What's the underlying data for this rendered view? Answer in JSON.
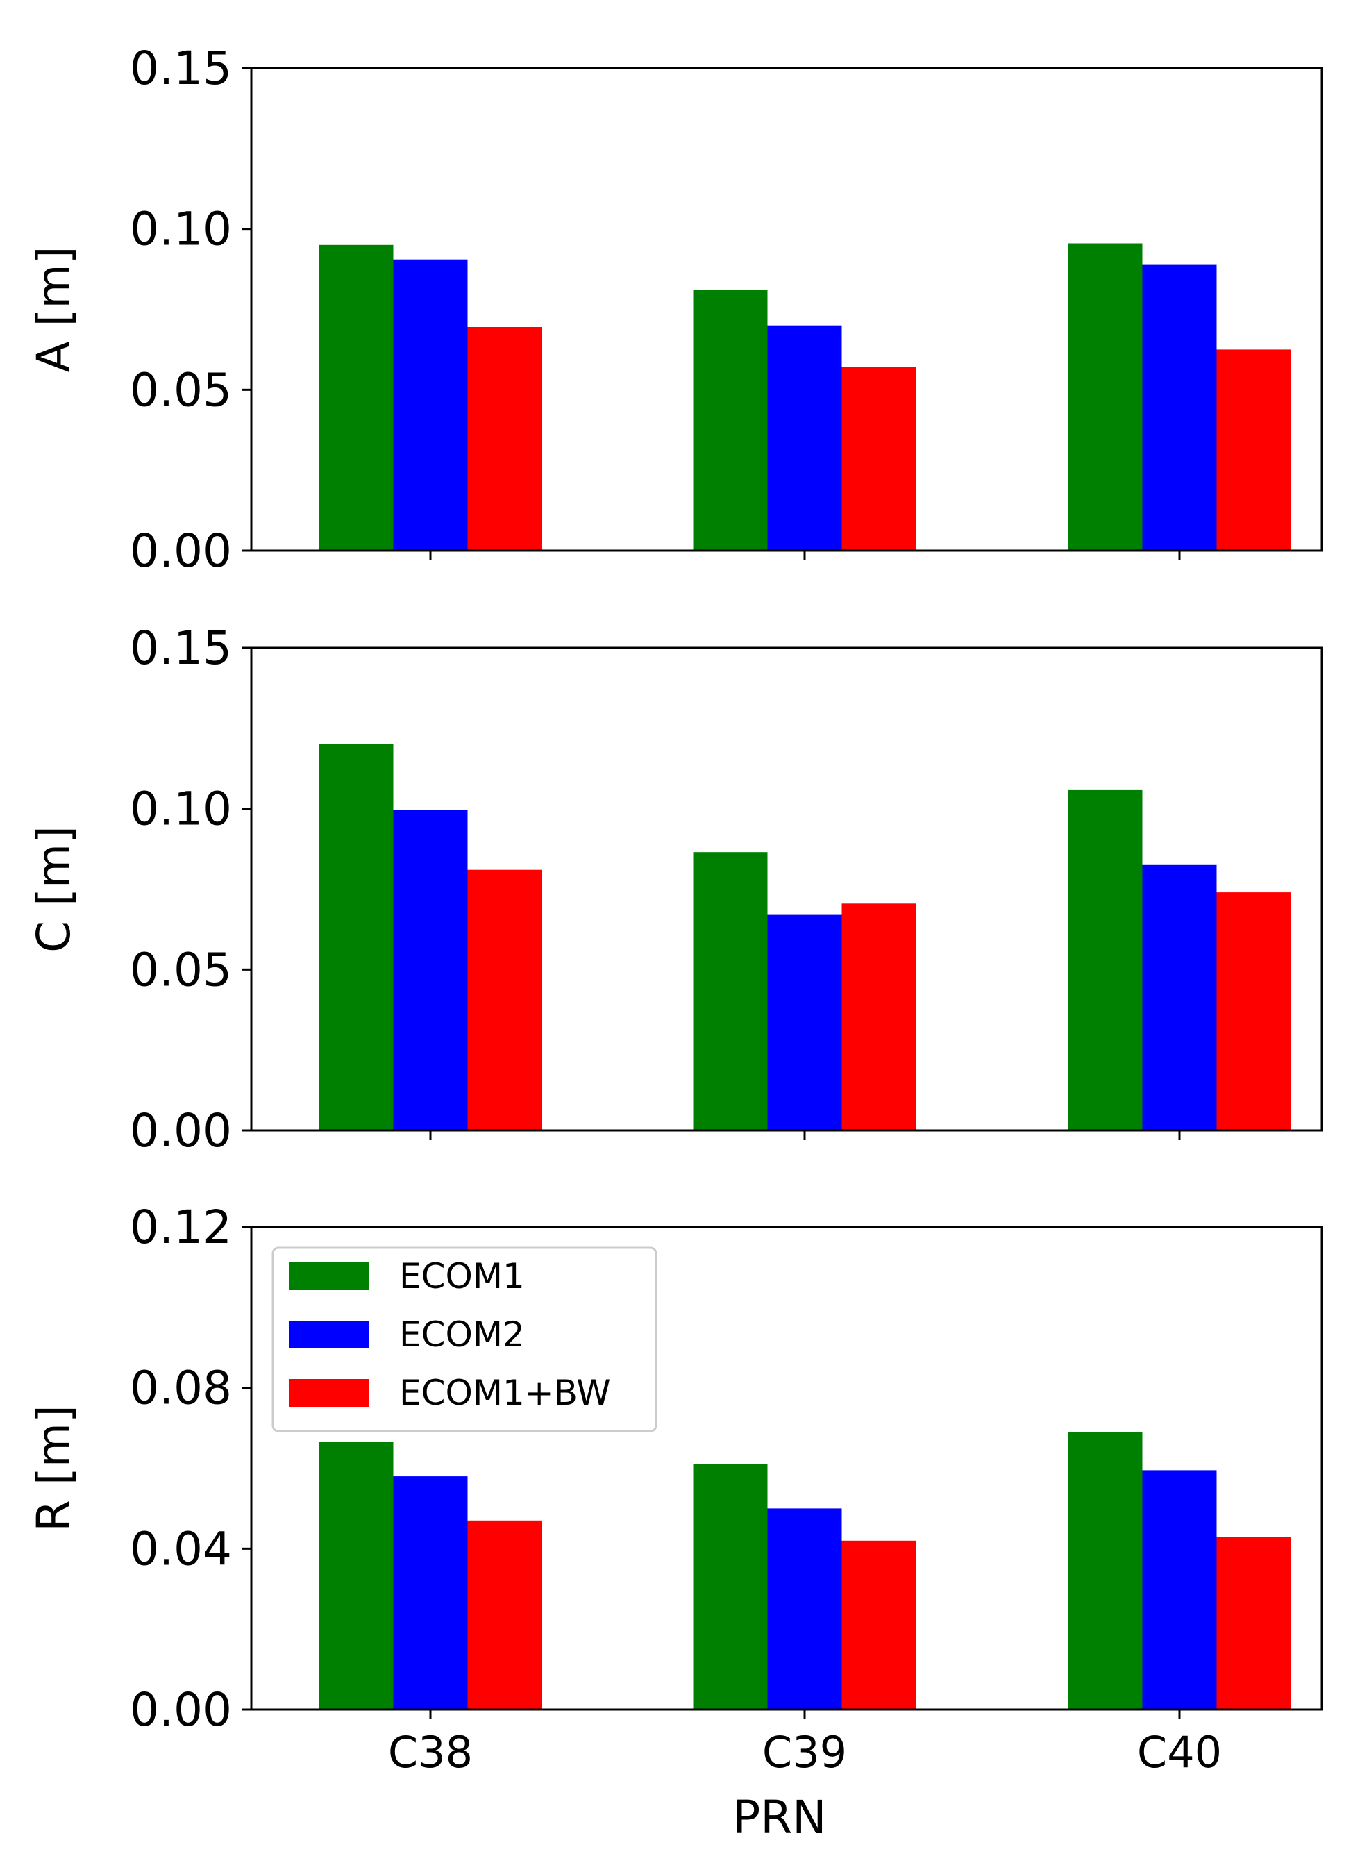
{
  "chart_data": [
    {
      "type": "bar",
      "id": "panel-a",
      "categories": [
        "C38",
        "C39",
        "C40"
      ],
      "series": [
        {
          "name": "ECOM1",
          "values": [
            0.095,
            0.081,
            0.0955
          ]
        },
        {
          "name": "ECOM2",
          "values": [
            0.0905,
            0.07,
            0.089
          ]
        },
        {
          "name": "ECOM1+BW",
          "values": [
            0.0695,
            0.057,
            0.0625
          ]
        }
      ],
      "ylabel": "A [m]",
      "xlabel": "",
      "ylim": [
        0,
        0.15
      ],
      "yticks": [
        0.0,
        0.05,
        0.1,
        0.15
      ],
      "ytick_labels": [
        "0.00",
        "0.05",
        "0.10",
        "0.15"
      ],
      "show_xticklabels": false
    },
    {
      "type": "bar",
      "id": "panel-c",
      "categories": [
        "C38",
        "C39",
        "C40"
      ],
      "series": [
        {
          "name": "ECOM1",
          "values": [
            0.12,
            0.0865,
            0.106
          ]
        },
        {
          "name": "ECOM2",
          "values": [
            0.0995,
            0.067,
            0.0825
          ]
        },
        {
          "name": "ECOM1+BW",
          "values": [
            0.081,
            0.0705,
            0.074
          ]
        }
      ],
      "ylabel": "C [m]",
      "xlabel": "",
      "ylim": [
        0,
        0.15
      ],
      "yticks": [
        0.0,
        0.05,
        0.1,
        0.15
      ],
      "ytick_labels": [
        "0.00",
        "0.05",
        "0.10",
        "0.15"
      ],
      "show_xticklabels": false
    },
    {
      "type": "bar",
      "id": "panel-r",
      "categories": [
        "C38",
        "C39",
        "C40"
      ],
      "series": [
        {
          "name": "ECOM1",
          "values": [
            0.0665,
            0.061,
            0.069
          ]
        },
        {
          "name": "ECOM2",
          "values": [
            0.058,
            0.05,
            0.0595
          ]
        },
        {
          "name": "ECOM1+BW",
          "values": [
            0.047,
            0.042,
            0.043
          ]
        }
      ],
      "ylabel": "R [m]",
      "xlabel": "PRN",
      "ylim": [
        0,
        0.12
      ],
      "yticks": [
        0.0,
        0.04,
        0.08,
        0.12
      ],
      "ytick_labels": [
        "0.00",
        "0.04",
        "0.08",
        "0.12"
      ],
      "show_xticklabels": true,
      "legend": {
        "position": "upper-left",
        "entries": [
          "ECOM1",
          "ECOM2",
          "ECOM1+BW"
        ]
      }
    }
  ],
  "colors": {
    "ECOM1": "#008000",
    "ECOM2": "#0000ff",
    "ECOM1+BW": "#ff0000",
    "axes": "#000000",
    "legend_border": "#cccccc"
  }
}
